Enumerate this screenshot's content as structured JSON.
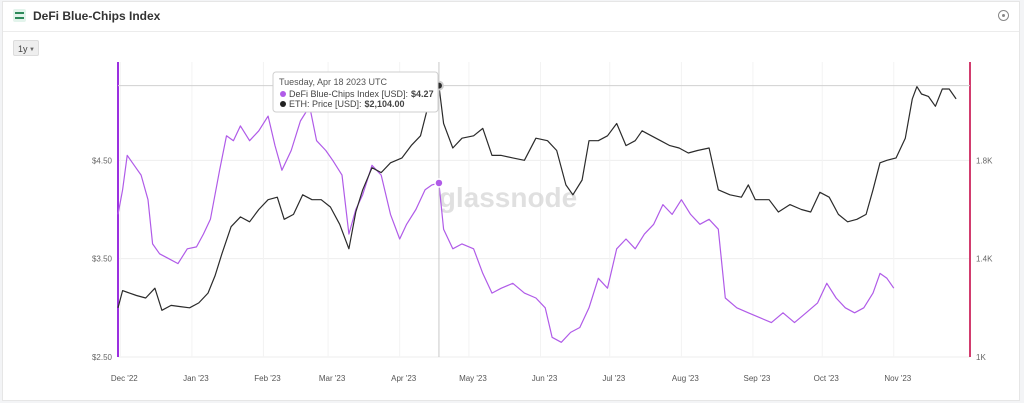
{
  "header": {
    "title": "DeFi Blue-Chips Index"
  },
  "controls": {
    "range_label": "1y"
  },
  "watermark": "glassnode",
  "tooltip": {
    "date": "Tuesday, Apr 18 2023 UTC",
    "rows": [
      {
        "label": "DeFi Blue-Chips Index [USD]:",
        "value": "$4.27",
        "color": "#b05be8"
      },
      {
        "label": "ETH: Price [USD]:",
        "value": "$2,104.00",
        "color": "#222222"
      }
    ]
  },
  "colors": {
    "index_line": "#b05be8",
    "eth_line": "#2b2b2b",
    "left_axis": "#9b30e0",
    "right_axis": "#d23c6e"
  },
  "chart_data": {
    "type": "line",
    "x_tick_labels": [
      "Dec '22",
      "Jan '23",
      "Feb '23",
      "Mar '23",
      "Apr '23",
      "May '23",
      "Jun '23",
      "Jul '23",
      "Aug '23",
      "Sep '23",
      "Oct '23",
      "Nov '23"
    ],
    "x_tick_positions": [
      "2022-12-01",
      "2023-01-01",
      "2023-02-01",
      "2023-03-01",
      "2023-04-01",
      "2023-05-01",
      "2023-06-01",
      "2023-07-01",
      "2023-08-01",
      "2023-09-01",
      "2023-10-01",
      "2023-11-01"
    ],
    "y_left": {
      "ticks": [
        "$2.50",
        "$3.50",
        "$4.50"
      ],
      "tick_values": [
        2.5,
        3.5,
        4.5
      ],
      "range": [
        2.5,
        5.5
      ]
    },
    "y_right": {
      "ticks": [
        "1K",
        "1.4K",
        "1.8K"
      ],
      "tick_values": [
        1000,
        1400,
        1800
      ],
      "range": [
        1000,
        2200
      ]
    },
    "grid": true,
    "hover_date": "2023-04-18",
    "series": [
      {
        "name": "DeFi Blue-Chips Index [USD]",
        "axis": "left",
        "points": [
          [
            "2022-11-30",
            3.95
          ],
          [
            "2022-12-02",
            4.2
          ],
          [
            "2022-12-04",
            4.55
          ],
          [
            "2022-12-07",
            4.45
          ],
          [
            "2022-12-10",
            4.35
          ],
          [
            "2022-12-13",
            4.1
          ],
          [
            "2022-12-15",
            3.65
          ],
          [
            "2022-12-18",
            3.55
          ],
          [
            "2022-12-22",
            3.5
          ],
          [
            "2022-12-26",
            3.45
          ],
          [
            "2022-12-30",
            3.6
          ],
          [
            "2023-01-03",
            3.62
          ],
          [
            "2023-01-06",
            3.75
          ],
          [
            "2023-01-09",
            3.9
          ],
          [
            "2023-01-13",
            4.4
          ],
          [
            "2023-01-16",
            4.75
          ],
          [
            "2023-01-19",
            4.7
          ],
          [
            "2023-01-22",
            4.85
          ],
          [
            "2023-01-26",
            4.7
          ],
          [
            "2023-01-30",
            4.8
          ],
          [
            "2023-02-03",
            4.95
          ],
          [
            "2023-02-06",
            4.65
          ],
          [
            "2023-02-09",
            4.4
          ],
          [
            "2023-02-13",
            4.6
          ],
          [
            "2023-02-17",
            4.9
          ],
          [
            "2023-02-21",
            5.05
          ],
          [
            "2023-02-24",
            4.7
          ],
          [
            "2023-02-28",
            4.6
          ],
          [
            "2023-03-03",
            4.5
          ],
          [
            "2023-03-07",
            4.35
          ],
          [
            "2023-03-10",
            3.75
          ],
          [
            "2023-03-13",
            4.0
          ],
          [
            "2023-03-16",
            4.15
          ],
          [
            "2023-03-20",
            4.45
          ],
          [
            "2023-03-24",
            4.35
          ],
          [
            "2023-03-28",
            3.95
          ],
          [
            "2023-04-01",
            3.7
          ],
          [
            "2023-04-04",
            3.85
          ],
          [
            "2023-04-08",
            4.0
          ],
          [
            "2023-04-12",
            4.2
          ],
          [
            "2023-04-15",
            4.25
          ],
          [
            "2023-04-18",
            4.27
          ],
          [
            "2023-04-20",
            3.8
          ],
          [
            "2023-04-24",
            3.6
          ],
          [
            "2023-04-28",
            3.65
          ],
          [
            "2023-05-03",
            3.6
          ],
          [
            "2023-05-07",
            3.35
          ],
          [
            "2023-05-11",
            3.15
          ],
          [
            "2023-05-15",
            3.2
          ],
          [
            "2023-05-20",
            3.25
          ],
          [
            "2023-05-25",
            3.15
          ],
          [
            "2023-05-30",
            3.1
          ],
          [
            "2023-06-03",
            3.0
          ],
          [
            "2023-06-06",
            2.7
          ],
          [
            "2023-06-10",
            2.65
          ],
          [
            "2023-06-14",
            2.75
          ],
          [
            "2023-06-18",
            2.8
          ],
          [
            "2023-06-22",
            3.0
          ],
          [
            "2023-06-26",
            3.3
          ],
          [
            "2023-06-30",
            3.2
          ],
          [
            "2023-07-04",
            3.6
          ],
          [
            "2023-07-08",
            3.7
          ],
          [
            "2023-07-12",
            3.6
          ],
          [
            "2023-07-16",
            3.75
          ],
          [
            "2023-07-20",
            3.85
          ],
          [
            "2023-07-24",
            4.05
          ],
          [
            "2023-07-28",
            3.95
          ],
          [
            "2023-08-01",
            4.1
          ],
          [
            "2023-08-05",
            3.95
          ],
          [
            "2023-08-09",
            3.85
          ],
          [
            "2023-08-13",
            3.9
          ],
          [
            "2023-08-17",
            3.8
          ],
          [
            "2023-08-20",
            3.1
          ],
          [
            "2023-08-25",
            3.0
          ],
          [
            "2023-08-30",
            2.95
          ],
          [
            "2023-09-04",
            2.9
          ],
          [
            "2023-09-09",
            2.85
          ],
          [
            "2023-09-14",
            2.95
          ],
          [
            "2023-09-19",
            2.85
          ],
          [
            "2023-09-24",
            2.95
          ],
          [
            "2023-09-29",
            3.05
          ],
          [
            "2023-10-03",
            3.25
          ],
          [
            "2023-10-07",
            3.1
          ],
          [
            "2023-10-11",
            3.0
          ],
          [
            "2023-10-15",
            2.95
          ],
          [
            "2023-10-19",
            3.0
          ],
          [
            "2023-10-23",
            3.15
          ],
          [
            "2023-10-26",
            3.35
          ],
          [
            "2023-10-29",
            3.3
          ],
          [
            "2023-11-01",
            3.2
          ]
        ]
      },
      {
        "name": "ETH: Price [USD]",
        "axis": "right",
        "points": [
          [
            "2022-11-30",
            1200
          ],
          [
            "2022-12-02",
            1270
          ],
          [
            "2022-12-05",
            1260
          ],
          [
            "2022-12-08",
            1250
          ],
          [
            "2022-12-12",
            1240
          ],
          [
            "2022-12-16",
            1280
          ],
          [
            "2022-12-19",
            1190
          ],
          [
            "2022-12-23",
            1210
          ],
          [
            "2022-12-27",
            1205
          ],
          [
            "2022-12-31",
            1200
          ],
          [
            "2023-01-04",
            1220
          ],
          [
            "2023-01-08",
            1260
          ],
          [
            "2023-01-11",
            1330
          ],
          [
            "2023-01-14",
            1420
          ],
          [
            "2023-01-18",
            1530
          ],
          [
            "2023-01-22",
            1570
          ],
          [
            "2023-01-26",
            1550
          ],
          [
            "2023-01-30",
            1600
          ],
          [
            "2023-02-03",
            1640
          ],
          [
            "2023-02-07",
            1650
          ],
          [
            "2023-02-10",
            1560
          ],
          [
            "2023-02-14",
            1580
          ],
          [
            "2023-02-18",
            1660
          ],
          [
            "2023-02-22",
            1640
          ],
          [
            "2023-02-26",
            1640
          ],
          [
            "2023-03-02",
            1610
          ],
          [
            "2023-03-06",
            1540
          ],
          [
            "2023-03-10",
            1440
          ],
          [
            "2023-03-13",
            1590
          ],
          [
            "2023-03-16",
            1680
          ],
          [
            "2023-03-20",
            1770
          ],
          [
            "2023-03-24",
            1750
          ],
          [
            "2023-03-28",
            1790
          ],
          [
            "2023-04-02",
            1810
          ],
          [
            "2023-04-06",
            1860
          ],
          [
            "2023-04-10",
            1900
          ],
          [
            "2023-04-13",
            2010
          ],
          [
            "2023-04-16",
            2090
          ],
          [
            "2023-04-18",
            2104
          ],
          [
            "2023-04-20",
            1950
          ],
          [
            "2023-04-24",
            1850
          ],
          [
            "2023-04-28",
            1890
          ],
          [
            "2023-05-03",
            1900
          ],
          [
            "2023-05-07",
            1930
          ],
          [
            "2023-05-11",
            1820
          ],
          [
            "2023-05-15",
            1820
          ],
          [
            "2023-05-20",
            1810
          ],
          [
            "2023-05-25",
            1800
          ],
          [
            "2023-05-30",
            1890
          ],
          [
            "2023-06-04",
            1880
          ],
          [
            "2023-06-08",
            1840
          ],
          [
            "2023-06-12",
            1700
          ],
          [
            "2023-06-15",
            1660
          ],
          [
            "2023-06-19",
            1720
          ],
          [
            "2023-06-22",
            1880
          ],
          [
            "2023-06-26",
            1880
          ],
          [
            "2023-06-30",
            1900
          ],
          [
            "2023-07-04",
            1950
          ],
          [
            "2023-07-08",
            1860
          ],
          [
            "2023-07-12",
            1880
          ],
          [
            "2023-07-15",
            1920
          ],
          [
            "2023-07-19",
            1900
          ],
          [
            "2023-07-23",
            1880
          ],
          [
            "2023-07-27",
            1860
          ],
          [
            "2023-07-31",
            1850
          ],
          [
            "2023-08-04",
            1830
          ],
          [
            "2023-08-08",
            1840
          ],
          [
            "2023-08-13",
            1850
          ],
          [
            "2023-08-17",
            1680
          ],
          [
            "2023-08-22",
            1660
          ],
          [
            "2023-08-27",
            1650
          ],
          [
            "2023-08-30",
            1700
          ],
          [
            "2023-09-02",
            1640
          ],
          [
            "2023-09-08",
            1640
          ],
          [
            "2023-09-12",
            1590
          ],
          [
            "2023-09-17",
            1620
          ],
          [
            "2023-09-22",
            1600
          ],
          [
            "2023-09-26",
            1590
          ],
          [
            "2023-09-30",
            1670
          ],
          [
            "2023-10-04",
            1650
          ],
          [
            "2023-10-08",
            1580
          ],
          [
            "2023-10-12",
            1550
          ],
          [
            "2023-10-16",
            1560
          ],
          [
            "2023-10-20",
            1580
          ],
          [
            "2023-10-23",
            1680
          ],
          [
            "2023-10-26",
            1790
          ],
          [
            "2023-10-29",
            1800
          ],
          [
            "2023-11-02",
            1810
          ],
          [
            "2023-11-06",
            1890
          ],
          [
            "2023-11-09",
            2050
          ],
          [
            "2023-11-11",
            2100
          ],
          [
            "2023-11-13",
            2070
          ],
          [
            "2023-11-16",
            2060
          ],
          [
            "2023-11-19",
            2020
          ],
          [
            "2023-11-22",
            2090
          ],
          [
            "2023-11-25",
            2090
          ],
          [
            "2023-11-28",
            2050
          ]
        ]
      }
    ]
  }
}
